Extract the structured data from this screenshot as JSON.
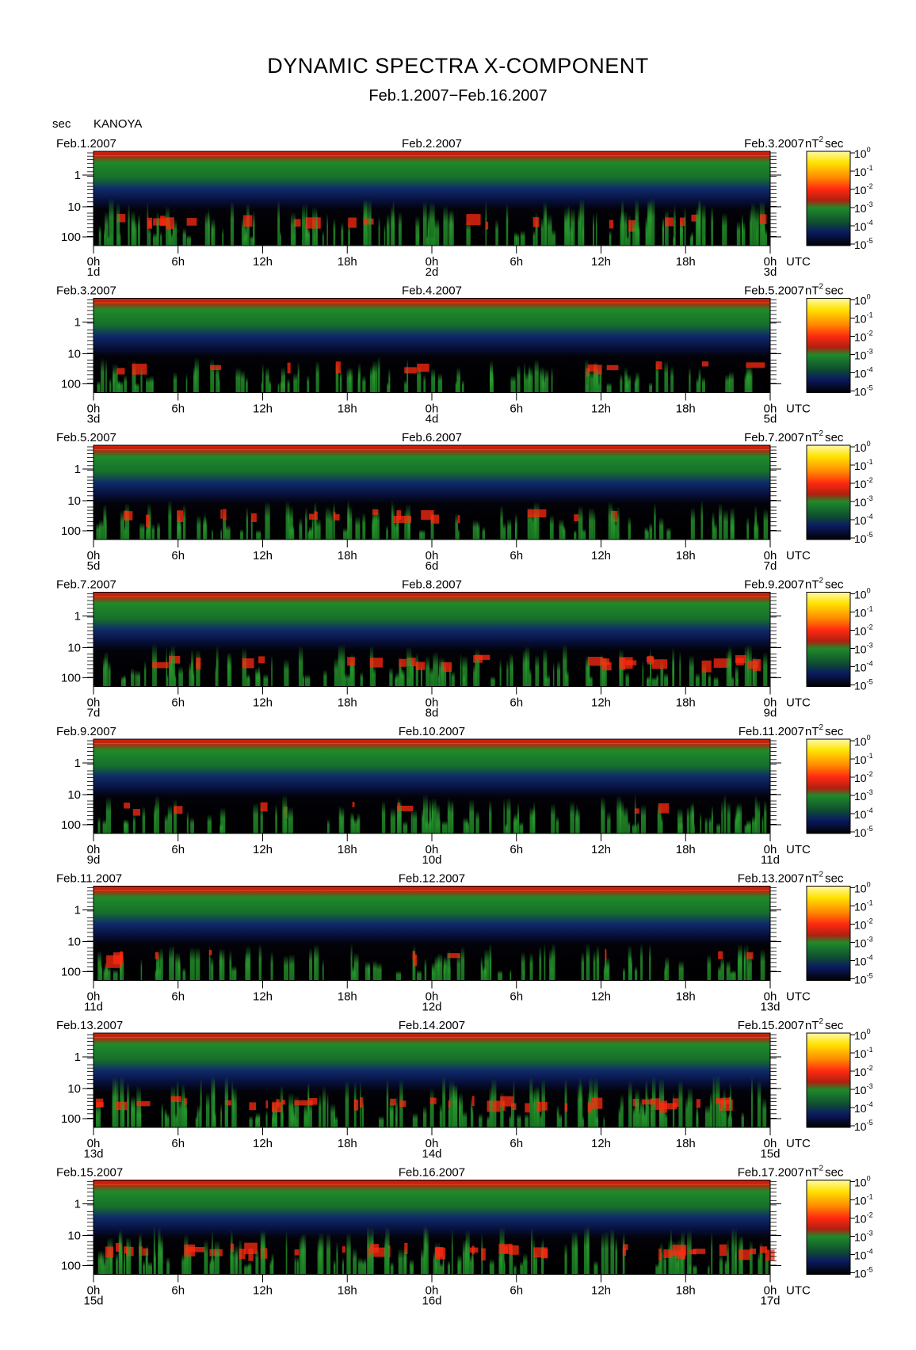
{
  "title": "DYNAMIC SPECTRA X-COMPONENT",
  "subtitle": "Feb.1.2007−Feb.16.2007",
  "y_unit_label": "sec",
  "station": "KANOYA",
  "colorbar_unit": "nT",
  "colorbar_unit_exp": "2",
  "colorbar_unit_sec": "sec",
  "utc_label": "UTC",
  "colors": {
    "background": "#000000",
    "low": "#0a1650",
    "mid": "#1f8a2a",
    "high": "#ff2a10",
    "max": "#fff200"
  },
  "chart_data": {
    "type": "heatmap",
    "yscale": "log",
    "y_ticks": [
      "1",
      "10",
      "100"
    ],
    "x_ticks": [
      "0h",
      "6h",
      "12h",
      "18h",
      "0h",
      "6h",
      "12h",
      "18h",
      "0h"
    ],
    "colorbar_ticks": [
      {
        "base": "10",
        "exp": "0"
      },
      {
        "base": "10",
        "exp": "-1"
      },
      {
        "base": "10",
        "exp": "-2"
      },
      {
        "base": "10",
        "exp": "-3"
      },
      {
        "base": "10",
        "exp": "-4"
      },
      {
        "base": "10",
        "exp": "-5"
      }
    ],
    "panels": [
      {
        "date_left": "Feb.1.2007",
        "date_mid": "Feb.2.2007",
        "date_right": "Feb.3.2007",
        "day_left": "1d",
        "day_mid": "2d",
        "day_right": "3d",
        "activity": 0.7
      },
      {
        "date_left": "Feb.3.2007",
        "date_mid": "Feb.4.2007",
        "date_right": "Feb.5.2007",
        "day_left": "3d",
        "day_mid": "4d",
        "day_right": "5d",
        "activity": 0.35
      },
      {
        "date_left": "Feb.5.2007",
        "date_mid": "Feb.6.2007",
        "date_right": "Feb.7.2007",
        "day_left": "5d",
        "day_mid": "6d",
        "day_right": "7d",
        "activity": 0.45
      },
      {
        "date_left": "Feb.7.2007",
        "date_mid": "Feb.8.2007",
        "date_right": "Feb.9.2007",
        "day_left": "7d",
        "day_mid": "8d",
        "day_right": "9d",
        "activity": 0.55
      },
      {
        "date_left": "Feb.9.2007",
        "date_mid": "Feb.10.2007",
        "date_right": "Feb.11.2007",
        "day_left": "9d",
        "day_mid": "10d",
        "day_right": "11d",
        "activity": 0.45
      },
      {
        "date_left": "Feb.11.2007",
        "date_mid": "Feb.12.2007",
        "date_right": "Feb.13.2007",
        "day_left": "11d",
        "day_mid": "12d",
        "day_right": "13d",
        "activity": 0.4
      },
      {
        "date_left": "Feb.13.2007",
        "date_mid": "Feb.14.2007",
        "date_right": "Feb.15.2007",
        "day_left": "13d",
        "day_mid": "14d",
        "day_right": "15d",
        "activity": 0.85
      },
      {
        "date_left": "Feb.15.2007",
        "date_mid": "Feb.16.2007",
        "date_right": "Feb.17.2007",
        "day_left": "15d",
        "day_mid": "16d",
        "day_right": "17d",
        "activity": 0.75
      }
    ]
  }
}
